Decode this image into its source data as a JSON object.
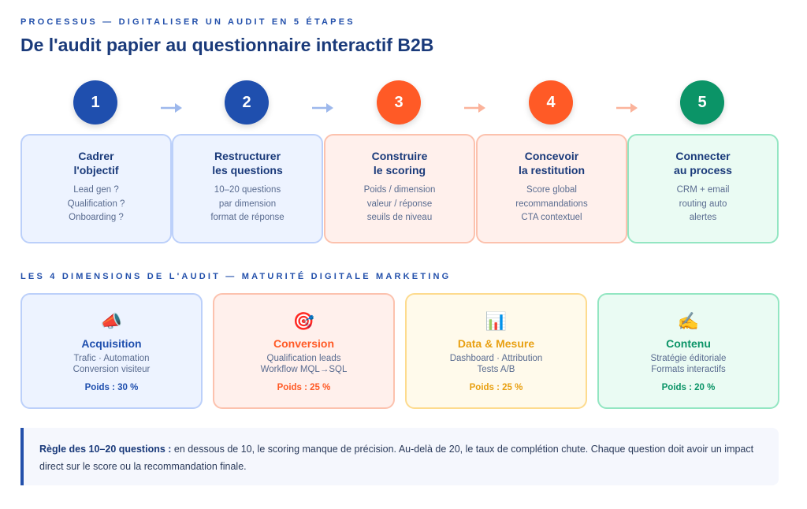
{
  "header": {
    "eyebrow": "PROCESSUS — DIGITALISER UN AUDIT EN 5 ÉTAPES",
    "title": "De l'audit papier au questionnaire interactif B2B"
  },
  "steps": [
    {
      "num": "1",
      "title1": "Cadrer",
      "title2": "l'objectif",
      "lines": [
        "Lead gen ?",
        "Qualification ?",
        "Onboarding ?"
      ],
      "color": "#1f4fae"
    },
    {
      "num": "2",
      "title1": "Restructurer",
      "title2": "les questions",
      "lines": [
        "10–20 questions",
        "par dimension",
        "format de réponse"
      ],
      "color": "#1f4fae"
    },
    {
      "num": "3",
      "title1": "Construire",
      "title2": "le scoring",
      "lines": [
        "Poids / dimension",
        "valeur / réponse",
        "seuils de niveau"
      ],
      "color": "#ff5a26"
    },
    {
      "num": "4",
      "title1": "Concevoir",
      "title2": "la restitution",
      "lines": [
        "Score global",
        "recommandations",
        "CTA contextuel"
      ],
      "color": "#ff5a26"
    },
    {
      "num": "5",
      "title1": "Connecter",
      "title2": "au process",
      "lines": [
        "CRM + email",
        "routing auto",
        "alertes"
      ],
      "color": "#0b9467"
    }
  ],
  "dimensions_heading": "LES 4 DIMENSIONS DE L'AUDIT — MATURITÉ DIGITALE MARKETING",
  "dimensions": [
    {
      "icon": "📣",
      "title": "Acquisition",
      "line1": "Trafic · Automation",
      "line2": "Conversion visiteur",
      "weight": "Poids : 30 %",
      "color": "#1f4fae"
    },
    {
      "icon": "🎯",
      "title": "Conversion",
      "line1": "Qualification leads",
      "line2": "Workflow MQL→SQL",
      "weight": "Poids : 25 %",
      "color": "#ff5a26"
    },
    {
      "icon": "📊",
      "title": "Data & Mesure",
      "line1": "Dashboard · Attribution",
      "line2": "Tests A/B",
      "weight": "Poids : 25 %",
      "color": "#e8a012"
    },
    {
      "icon": "✍️",
      "title": "Contenu",
      "line1": "Stratégie éditoriale",
      "line2": "Formats interactifs",
      "weight": "Poids : 20 %",
      "color": "#0b9467"
    }
  ],
  "callout": {
    "bold": "Règle des 10–20 questions :",
    "text": " en dessous de 10, le scoring manque de précision. Au-delà de 20, le taux de complétion chute. Chaque question doit avoir un impact direct sur le score ou la recommandation finale."
  }
}
